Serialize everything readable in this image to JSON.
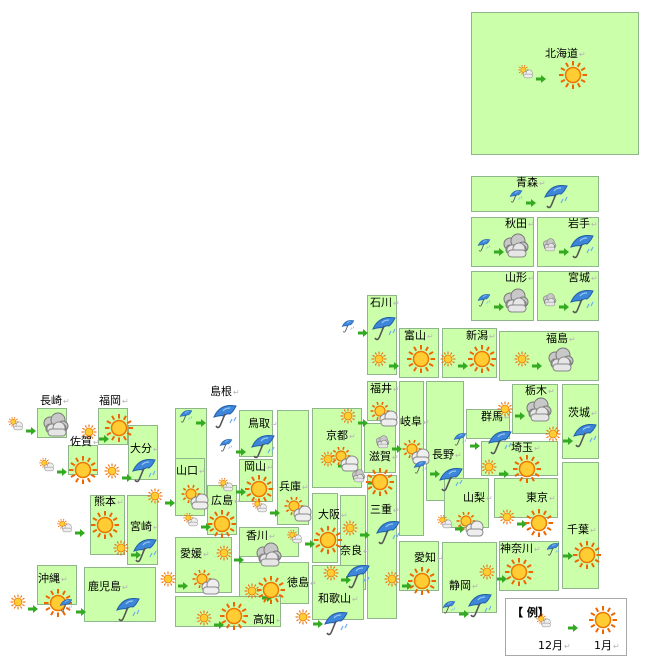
{
  "legend": {
    "title": "【 例】",
    "from_label": "12月",
    "to_label": "1月",
    "from_icon": "sun-cloud-icon",
    "to_icon": "sun-icon"
  },
  "colors": {
    "prefecture_fill": "#ccffaa",
    "prefecture_border": "#8fb58a",
    "arrow": "#33aa22"
  },
  "prefectures": [
    {
      "id": "hokkaido",
      "name": "北海道",
      "dec": "sun-cloud-icon",
      "jan": "sun-icon"
    },
    {
      "id": "aomori",
      "name": "青森",
      "dec": "umbrella-icon",
      "jan": "umbrella-icon"
    },
    {
      "id": "akita",
      "name": "秋田",
      "dec": "umbrella-icon",
      "jan": "cloud-icon"
    },
    {
      "id": "iwate",
      "name": "岩手",
      "dec": "cloud-icon",
      "jan": "umbrella-icon"
    },
    {
      "id": "yamagata",
      "name": "山形",
      "dec": "umbrella-icon",
      "jan": "cloud-icon"
    },
    {
      "id": "miyagi",
      "name": "宮城",
      "dec": "cloud-icon",
      "jan": "umbrella-icon"
    },
    {
      "id": "ishikawa",
      "name": "石川",
      "dec": "umbrella-icon",
      "jan": "umbrella-icon"
    },
    {
      "id": "toyama",
      "name": "富山",
      "dec": "sun-icon",
      "jan": "sun-icon"
    },
    {
      "id": "niigata",
      "name": "新潟",
      "dec": "sun-icon",
      "jan": "sun-icon"
    },
    {
      "id": "fukushima",
      "name": "福島",
      "dec": "sun-icon",
      "jan": "cloud-icon"
    },
    {
      "id": "fukui",
      "name": "福井",
      "dec": "sun-icon",
      "jan": "sun-cloud-icon"
    },
    {
      "id": "tochigi",
      "name": "栃木",
      "dec": "sun-icon",
      "jan": "cloud-icon"
    },
    {
      "id": "ibaraki",
      "name": "茨城",
      "dec": "sun-icon",
      "jan": "umbrella-icon"
    },
    {
      "id": "gunma",
      "name": "群馬",
      "dec": "umbrella-icon",
      "jan": "umbrella-icon"
    },
    {
      "id": "gifu",
      "name": "岐阜",
      "dec": "cloud-icon",
      "jan": "sun-cloud-icon"
    },
    {
      "id": "nagano",
      "name": "長野",
      "dec": "umbrella-icon",
      "jan": "umbrella-icon"
    },
    {
      "id": "saitama",
      "name": "埼玉",
      "dec": "sun-icon",
      "jan": "sun-icon"
    },
    {
      "id": "kyoto",
      "name": "京都",
      "dec": "sun-icon",
      "jan": "sun-cloud-icon"
    },
    {
      "id": "shiga",
      "name": "滋賀",
      "dec": "cloud-icon",
      "jan": "sun-icon"
    },
    {
      "id": "yamanashi",
      "name": "山梨",
      "dec": "sun-cloud-icon",
      "jan": "sun-cloud-icon"
    },
    {
      "id": "tokyo",
      "name": "東京",
      "dec": "sun-icon",
      "jan": "sun-icon"
    },
    {
      "id": "chiba",
      "name": "千葉",
      "dec": "umbrella-icon",
      "jan": "sun-icon"
    },
    {
      "id": "nagasaki",
      "name": "長崎",
      "dec": "sun-cloud-icon",
      "jan": "cloud-icon"
    },
    {
      "id": "fukuoka",
      "name": "福岡",
      "dec": "sun-icon",
      "jan": "sun-icon"
    },
    {
      "id": "saga",
      "name": "佐賀",
      "dec": "sun-cloud-icon",
      "jan": "sun-icon"
    },
    {
      "id": "oita",
      "name": "大分",
      "dec": "sun-icon",
      "jan": "umbrella-icon"
    },
    {
      "id": "shimane",
      "name": "島根",
      "dec": "umbrella-icon",
      "jan": "umbrella-icon"
    },
    {
      "id": "tottori",
      "name": "鳥取",
      "dec": "umbrella-icon",
      "jan": "umbrella-icon"
    },
    {
      "id": "yamaguchi",
      "name": "山口",
      "dec": "sun-icon",
      "jan": "sun-cloud-icon"
    },
    {
      "id": "okayama",
      "name": "岡山",
      "dec": "sun-cloud-icon",
      "jan": "sun-icon"
    },
    {
      "id": "hyogo",
      "name": "兵庫",
      "dec": "sun-cloud-icon",
      "jan": "sun-cloud-icon"
    },
    {
      "id": "hiroshima",
      "name": "広島",
      "dec": "sun-cloud-icon",
      "jan": "sun-icon"
    },
    {
      "id": "mie",
      "name": "三重",
      "dec": "sun-icon",
      "jan": "umbrella-icon"
    },
    {
      "id": "kumamoto",
      "name": "熊本",
      "dec": "sun-cloud-icon",
      "jan": "sun-icon"
    },
    {
      "id": "miyazaki",
      "name": "宮崎",
      "dec": "sun-icon",
      "jan": "umbrella-icon"
    },
    {
      "id": "osaka",
      "name": "大阪",
      "dec": "sun-cloud-icon",
      "jan": "sun-icon"
    },
    {
      "id": "kagawa",
      "name": "香川",
      "dec": "sun-icon",
      "jan": "cloud-icon"
    },
    {
      "id": "ehime",
      "name": "愛媛",
      "dec": "sun-icon",
      "jan": "sun-cloud-icon"
    },
    {
      "id": "nara",
      "name": "奈良",
      "dec": "sun-icon",
      "jan": "umbrella-icon"
    },
    {
      "id": "aichi",
      "name": "愛知",
      "dec": "sun-icon",
      "jan": "sun-icon"
    },
    {
      "id": "kanagawa",
      "name": "神奈川",
      "dec": "sun-icon",
      "jan": "sun-icon"
    },
    {
      "id": "shizuoka",
      "name": "静岡",
      "dec": "umbrella-icon",
      "jan": "umbrella-icon"
    },
    {
      "id": "tokushima",
      "name": "徳島",
      "dec": "sun-icon",
      "jan": "sun-icon"
    },
    {
      "id": "wakayama",
      "name": "和歌山",
      "dec": "sun-icon",
      "jan": "umbrella-icon"
    },
    {
      "id": "kochi",
      "name": "高知",
      "dec": "sun-icon",
      "jan": "sun-icon"
    },
    {
      "id": "okinawa",
      "name": "沖縄",
      "dec": "sun-icon",
      "jan": "sun-icon"
    },
    {
      "id": "kagoshima",
      "name": "鹿児島",
      "dec": "umbrella-icon",
      "jan": "umbrella-icon"
    }
  ]
}
